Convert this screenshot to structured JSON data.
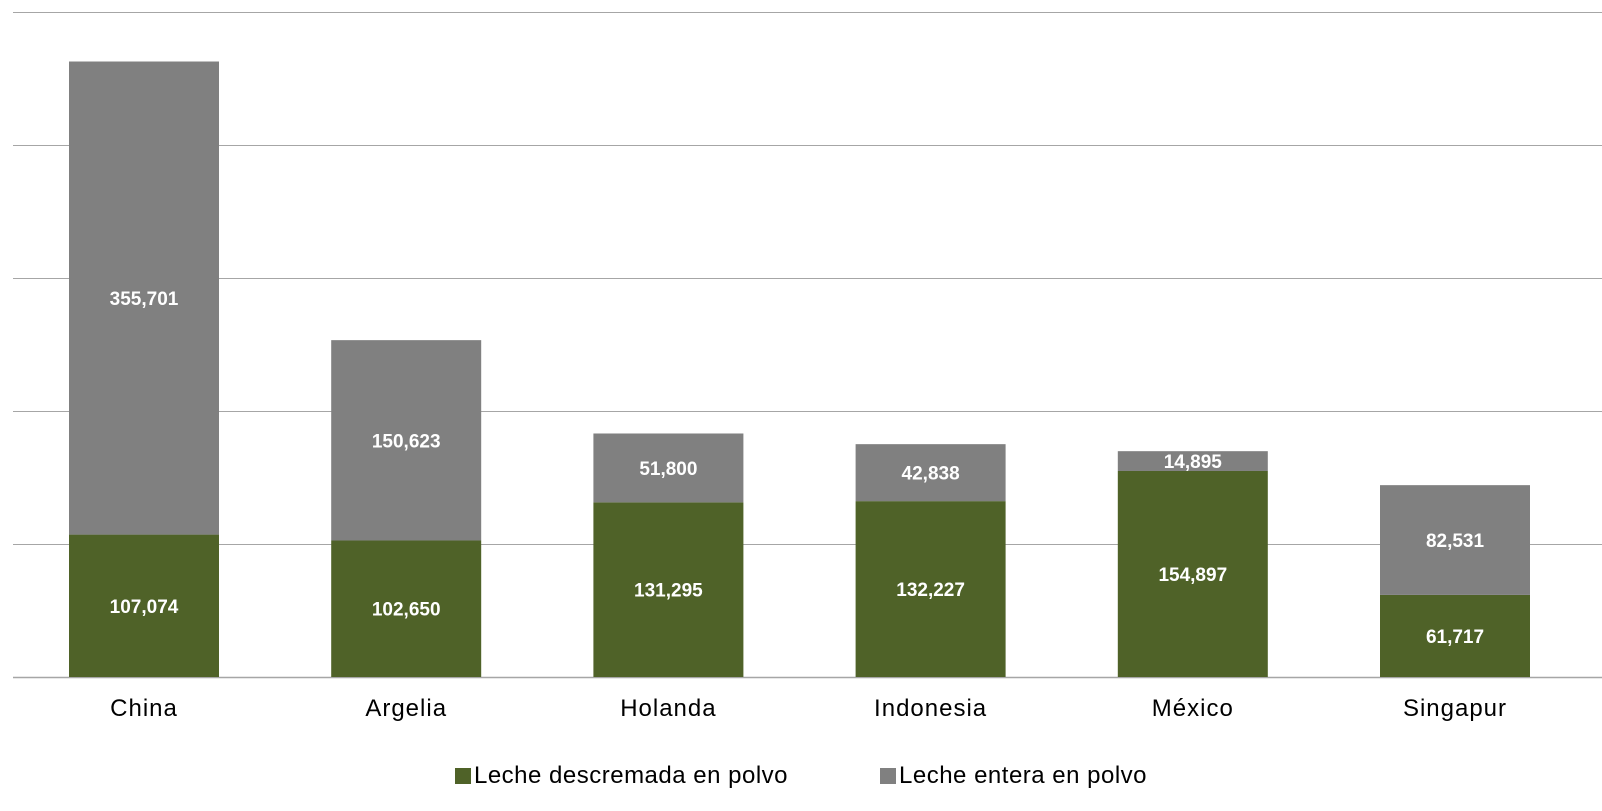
{
  "chart_data": {
    "type": "bar",
    "stacked": true,
    "categories": [
      "China",
      "Argelia",
      "Holanda",
      "Indonesia",
      "México",
      "Singapur"
    ],
    "series": [
      {
        "name": "Leche descremada en polvo",
        "color": "#4f6228",
        "values": [
          107074,
          102650,
          131295,
          132227,
          154897,
          61717
        ],
        "labels": [
          "107,074",
          "102,650",
          "131,295",
          "132,227",
          "154,897",
          "61,717"
        ]
      },
      {
        "name": "Leche entera en polvo",
        "color": "#808080",
        "values": [
          355701,
          150623,
          51800,
          42838,
          14895,
          82531
        ],
        "labels": [
          "355,701",
          "150,623",
          "51,800",
          "42,838",
          "14,895",
          "82,531"
        ]
      }
    ],
    "ylim": [
      0,
      500000
    ],
    "ytick_step": 100000,
    "grid": true,
    "gridline_color": "#a6a6a6",
    "legend_position": "bottom",
    "title": "",
    "xlabel": "",
    "ylabel": ""
  }
}
